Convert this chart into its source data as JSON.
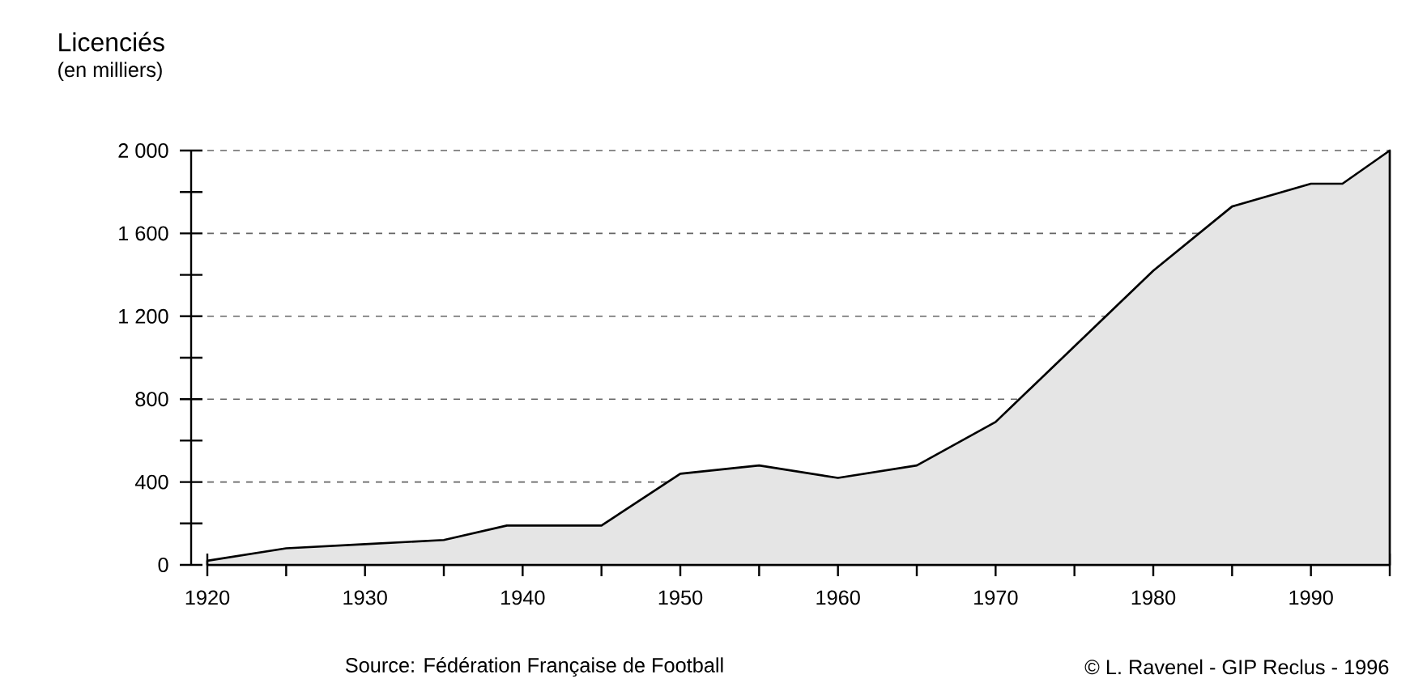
{
  "chart_data": {
    "type": "area",
    "ylabel": "Licenciés",
    "subtitle": "(en milliers)",
    "annotations": [
      "Source: Fédération Française de Football",
      "© L. Ravenel - GIP Reclus - 1996"
    ],
    "x": [
      1920,
      1925,
      1930,
      1935,
      1939,
      1945,
      1950,
      1955,
      1960,
      1965,
      1970,
      1980,
      1985,
      1990,
      1992,
      1995
    ],
    "series": [
      {
        "color": "#e5e5e5",
        "values": [
          20,
          80,
          100,
          120,
          190,
          190,
          440,
          480,
          420,
          480,
          690,
          1420,
          1730,
          1840,
          1840,
          2000
        ]
      }
    ],
    "xlim": [
      1920,
      1995
    ],
    "ylim": [
      0,
      2000
    ],
    "xticks": [
      1920,
      {
        "value": 1925,
        "label": null
      },
      1930,
      {
        "value": 1935,
        "label": null
      },
      1940,
      {
        "value": 1945,
        "label": null
      },
      1950,
      {
        "value": 1955,
        "label": null
      },
      1960,
      {
        "value": 1965,
        "label": null
      },
      1970,
      {
        "value": 1975,
        "label": null
      },
      1980,
      {
        "value": 1985,
        "label": null
      },
      1990,
      {
        "value": 1995,
        "label": null
      }
    ],
    "yticks": [
      0,
      {
        "value": 200,
        "label": null
      },
      400,
      {
        "value": 600,
        "label": null
      },
      800,
      {
        "value": 1000,
        "label": null
      },
      {
        "value": 1200,
        "label": "1 200"
      },
      {
        "value": 1400,
        "label": null
      },
      {
        "value": 1600,
        "label": "1 600"
      },
      {
        "value": 1800,
        "label": null
      },
      {
        "value": 2000,
        "label": "2 000"
      }
    ],
    "grid": "y",
    "line_style": "solid"
  }
}
